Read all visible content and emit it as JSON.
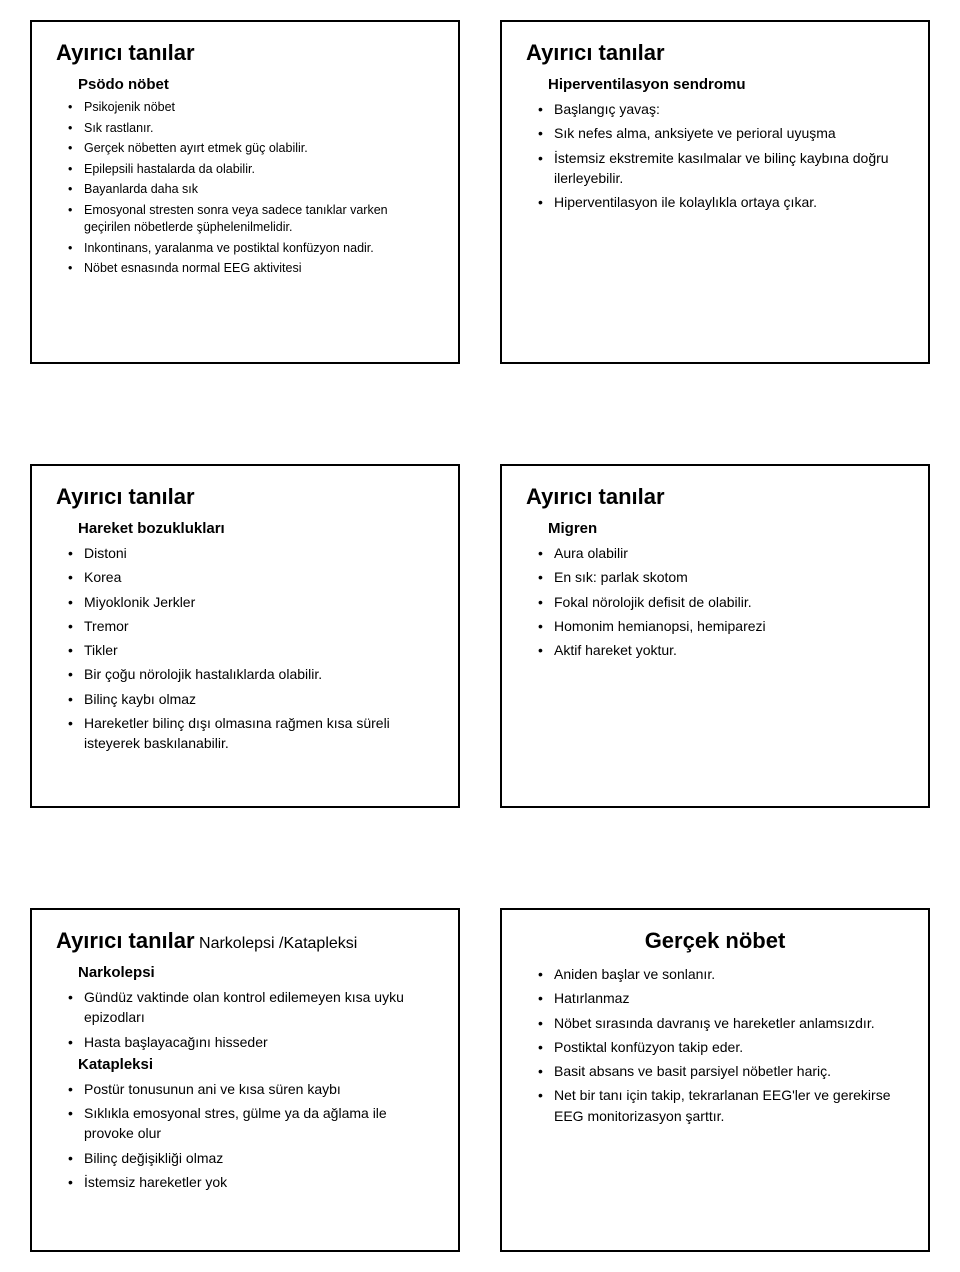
{
  "cards": [
    {
      "title": "Ayırıcı tanılar",
      "sub_heading": "Psödo nöbet",
      "bullet_size": "small",
      "items": [
        "Psikojenik nöbet",
        "Sık rastlanır.",
        "Gerçek nöbetten ayırt etmek güç olabilir.",
        "Epilepsili hastalarda da olabilir.",
        "Bayanlarda daha sık",
        "Emosyonal stresten sonra veya sadece tanıklar varken geçirilen nöbetlerde şüphelenilmelidir.",
        "Inkontinans, yaralanma ve postiktal konfüzyon nadir.",
        "Nöbet esnasında normal EEG aktivitesi"
      ]
    },
    {
      "title": "Ayırıcı tanılar",
      "sub_heading": "Hiperventilasyon sendromu",
      "bullet_size": "normal",
      "items": [
        "Başlangıç yavaş:",
        " Sık nefes alma, anksiyete ve perioral uyuşma",
        " İstemsiz ekstremite kasılmalar ve bilinç kaybına doğru ilerleyebilir.",
        " Hiperventilasyon ile kolaylıkla ortaya çıkar."
      ]
    },
    {
      "title": "Ayırıcı tanılar",
      "sub_heading": "Hareket bozuklukları",
      "bullet_size": "normal",
      "items": [
        " Distoni",
        " Korea",
        " Miyoklonik Jerkler",
        " Tremor",
        " Tikler",
        " Bir çoğu nörolojik hastalıklarda olabilir.",
        " Bilinç kaybı olmaz",
        " Hareketler bilinç dışı olmasına rağmen kısa süreli isteyerek baskılanabilir."
      ]
    },
    {
      "title": "Ayırıcı tanılar",
      "sub_heading": "Migren",
      "bullet_size": "normal",
      "items": [
        " Aura olabilir",
        " En sık: parlak skotom",
        " Fokal nörolojik defisit de olabilir.",
        " Homonim hemianopsi, hemiparezi",
        " Aktif hareket yoktur."
      ]
    },
    {
      "title_inline": "Ayırıcı tanılar",
      "title_suffix": " Narkolepsi /Katapleksi",
      "bullet_size": "normal",
      "sections": [
        {
          "heading": "Narkolepsi",
          "items": [
            " Gündüz vaktinde olan kontrol edilemeyen kısa uyku epizodları",
            " Hasta başlayacağını hisseder"
          ]
        },
        {
          "heading": "Katapleksi",
          "items": [
            "Postür tonusunun ani ve kısa süren kaybı",
            " Sıklıkla emosyonal stres, gülme ya da ağlama ile provoke olur",
            " Bilinç değişikliği olmaz",
            " İstemsiz hareketler yok"
          ]
        }
      ]
    },
    {
      "title_center": "Gerçek nöbet",
      "bullet_size": "normal",
      "items": [
        " Aniden başlar ve sonlanır.",
        " Hatırlanmaz",
        " Nöbet sırasında davranış ve hareketler anlamsızdır.",
        " Postiktal konfüzyon takip eder.",
        " Basit absans ve basit parsiyel nöbetler hariç.",
        " Net bir tanı için takip, tekrarlanan EEG'ler ve gerekirse EEG monitorizasyon şarttır."
      ]
    }
  ]
}
